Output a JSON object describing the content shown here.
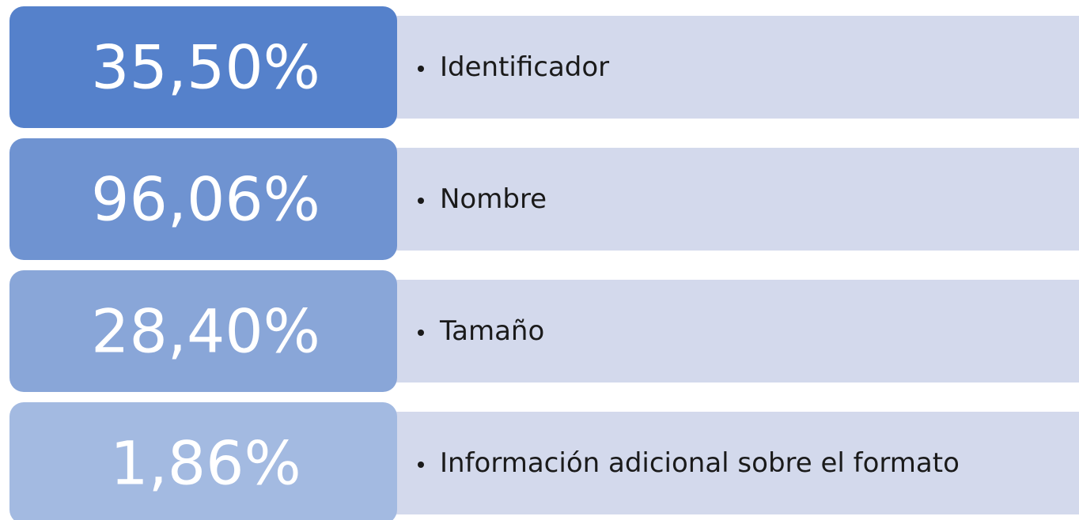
{
  "items": [
    {
      "value": "35,50%",
      "text": "Identificador"
    },
    {
      "value": "96,06%",
      "text": "Nombre"
    },
    {
      "value": "28,40%",
      "text": "Tamaño"
    },
    {
      "value": "1,86%",
      "text": "Información adicional sobre el formato"
    }
  ]
}
